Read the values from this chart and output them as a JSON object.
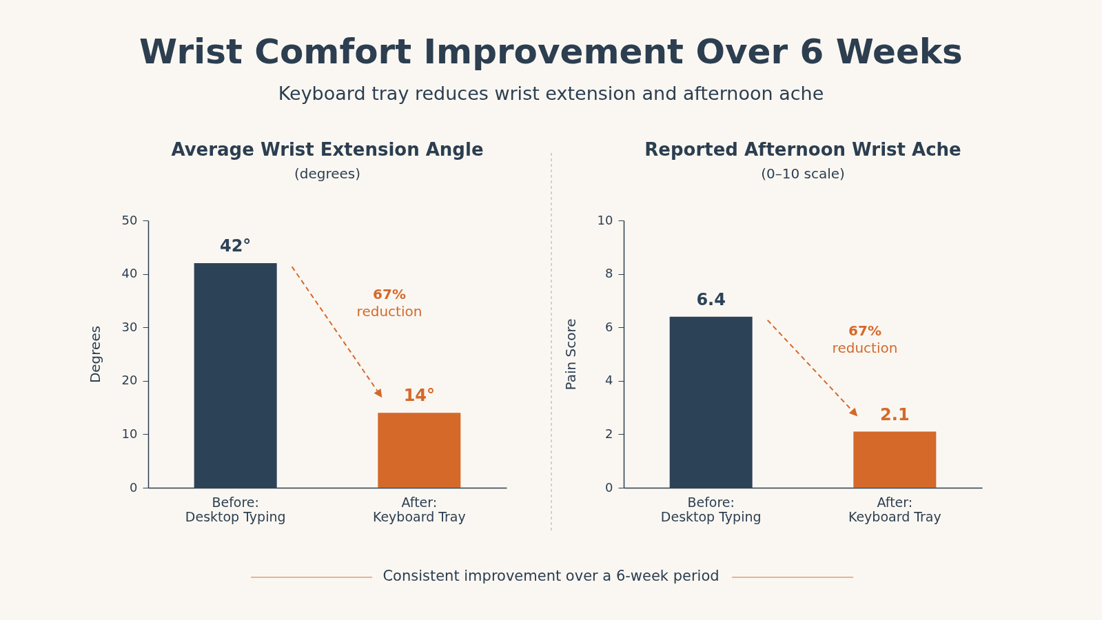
{
  "chart_data": [
    {
      "type": "bar",
      "title": "Average Wrist Extension Angle",
      "subtitle": "(degrees)",
      "ylabel": "Degrees",
      "categories": [
        "Before: Desktop Typing",
        "After: Keyboard Tray"
      ],
      "values": [
        42,
        14
      ],
      "colors": [
        "#2c4257",
        "#d4692a"
      ],
      "value_labels": [
        "42°",
        "14°"
      ],
      "ylim": [
        0,
        50
      ],
      "yticks": [
        0,
        10,
        20,
        30,
        40,
        50
      ],
      "annotations": [
        "Wrist Comfort Improvement Over 6 Weeks",
        "Keyboard tray reduces wrist extension and afternoon ache",
        "67% reduction"
      ]
    },
    {
      "type": "bar",
      "title": "Reported Afternoon Wrist Ache",
      "subtitle": "(0–10 scale)",
      "ylabel": "Pain Score",
      "categories": [
        "Before: Desktop Typing",
        "After: Keyboard Tray"
      ],
      "values": [
        6.4,
        2.1
      ],
      "colors": [
        "#2c4257",
        "#d4692a"
      ],
      "value_labels": [
        "6.4",
        "2.1"
      ],
      "ylim": [
        0,
        10
      ],
      "yticks": [
        0,
        2,
        4,
        6,
        8,
        10
      ],
      "annotations": [
        "67% reduction",
        "Consistent improvement over a 6-week period"
      ]
    }
  ]
}
